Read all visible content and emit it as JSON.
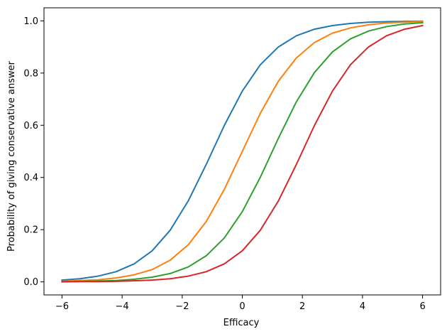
{
  "chart_data": {
    "type": "line",
    "title": "",
    "xlabel": "Efficacy",
    "ylabel": "Probability of giving conservative answer",
    "xlim": [
      -6.6,
      6.6
    ],
    "ylim": [
      -0.05,
      1.05
    ],
    "xticks": [
      -6,
      -4,
      -2,
      0,
      2,
      4,
      6
    ],
    "xtick_labels": [
      "−6",
      "−4",
      "−2",
      "0",
      "2",
      "4",
      "6"
    ],
    "yticks": [
      0.0,
      0.2,
      0.4,
      0.6,
      0.8,
      1.0
    ],
    "ytick_labels": [
      "0.0",
      "0.2",
      "0.4",
      "0.6",
      "0.8",
      "1.0"
    ],
    "grid": false,
    "x": [
      -6.0,
      -5.4,
      -4.8,
      -4.2,
      -3.6,
      -3.0,
      -2.4,
      -1.8,
      -1.2,
      -0.6,
      0.0,
      0.6,
      1.2,
      1.8,
      2.4,
      3.0,
      3.6,
      4.2,
      4.8,
      5.4,
      6.0
    ],
    "series": [
      {
        "color": "#1f77b4",
        "values": [
          0.007,
          0.012,
          0.022,
          0.039,
          0.069,
          0.119,
          0.198,
          0.31,
          0.45,
          0.599,
          0.731,
          0.832,
          0.9,
          0.943,
          0.968,
          0.982,
          0.99,
          0.995,
          0.997,
          0.998,
          0.999
        ]
      },
      {
        "color": "#ff7f0e",
        "values": [
          0.002,
          0.005,
          0.008,
          0.015,
          0.027,
          0.047,
          0.083,
          0.142,
          0.231,
          0.354,
          0.5,
          0.646,
          0.769,
          0.858,
          0.917,
          0.953,
          0.973,
          0.985,
          0.992,
          0.995,
          0.998
        ]
      },
      {
        "color": "#2ca02c",
        "values": [
          0.001,
          0.002,
          0.003,
          0.005,
          0.01,
          0.018,
          0.032,
          0.057,
          0.1,
          0.168,
          0.269,
          0.401,
          0.55,
          0.69,
          0.802,
          0.881,
          0.931,
          0.961,
          0.978,
          0.988,
          0.993
        ]
      },
      {
        "color": "#d62728",
        "values": [
          0.0,
          0.001,
          0.001,
          0.002,
          0.004,
          0.007,
          0.012,
          0.022,
          0.039,
          0.069,
          0.119,
          0.198,
          0.31,
          0.45,
          0.599,
          0.731,
          0.832,
          0.9,
          0.943,
          0.968,
          0.982
        ]
      }
    ]
  }
}
